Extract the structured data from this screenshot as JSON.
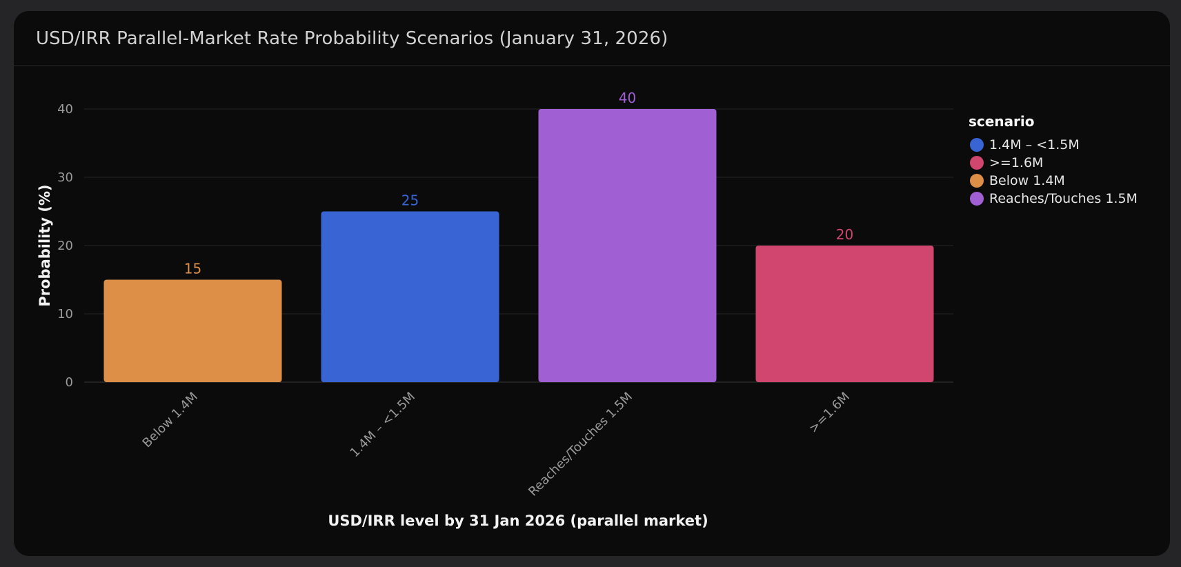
{
  "title": "USD/IRR Parallel-Market Rate Probability Scenarios (January 31, 2026)",
  "chart_data": {
    "type": "bar",
    "categories": [
      "Below 1.4M",
      "1.4M – <1.5M",
      "Reaches/Touches 1.5M",
      ">=1.6M"
    ],
    "values": [
      15,
      25,
      40,
      20
    ],
    "data_labels": [
      "15",
      "25",
      "40",
      "20"
    ],
    "colors": [
      "#dd8f48",
      "#3864d4",
      "#a05fd3",
      "#d0466e"
    ],
    "xlabel": "USD/IRR level by 31 Jan 2026 (parallel market)",
    "ylabel": "Probability (%)",
    "ylim": [
      0,
      40
    ],
    "yticks": [
      "0",
      "10",
      "20",
      "30",
      "40"
    ],
    "grid": true,
    "legend": {
      "title": "scenario",
      "position": "top-right",
      "items": [
        {
          "label": "1.4M – <1.5M",
          "color": "#3864d4"
        },
        {
          "label": ">=1.6M",
          "color": "#d0466e"
        },
        {
          "label": "Below 1.4M",
          "color": "#dd8f48"
        },
        {
          "label": "Reaches/Touches 1.5M",
          "color": "#a05fd3"
        }
      ]
    }
  }
}
